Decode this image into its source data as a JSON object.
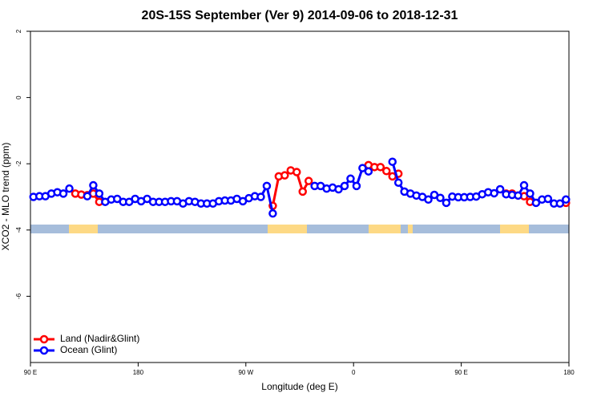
{
  "chart_data": {
    "type": "line",
    "title": "20S-15S September (Ver 9)   2014-09-06 to 2018-12-31",
    "xlabel": "Longitude (deg E)",
    "ylabel": "XCO2 - MLO trend (ppm)",
    "x": [
      92.5,
      97.5,
      102.5,
      107.5,
      112.5,
      117.5,
      122.5,
      127.5,
      132.5,
      137.5,
      142.5,
      147.5,
      152.5,
      157.5,
      162.5,
      167.5,
      172.5,
      177.5,
      182.5,
      187.5,
      192.5,
      197.5,
      202.5,
      207.5,
      212.5,
      217.5,
      222.5,
      227.5,
      232.5,
      237.5,
      242.5,
      247.5,
      252.5,
      257.5,
      262.5,
      267.5,
      272.5,
      277.5,
      282.5,
      287.5,
      292.5,
      297.5,
      302.5,
      307.5,
      312.5,
      317.5,
      322.5,
      327.5,
      332.5,
      337.5,
      342.5,
      347.5,
      352.5,
      357.5,
      362.5,
      367.5,
      372.5,
      377.5,
      382.5,
      387.5,
      392.5,
      397.5,
      402.5,
      407.5,
      412.5,
      417.5,
      422.5,
      427.5,
      432.5,
      437.5,
      442.5,
      447.5,
      452.5,
      457.5,
      462.5,
      467.5,
      472.5,
      477.5,
      482.5,
      487.5,
      492.5,
      497.5,
      502.5,
      507.5,
      512.5,
      517.5,
      522.5,
      527.5,
      532.5,
      537.5
    ],
    "series": [
      {
        "name": "Land (Nadir&Glint)",
        "color": "#ff0000",
        "values": [
          null,
          null,
          null,
          null,
          null,
          null,
          null,
          -2.9,
          -2.93,
          -2.95,
          -2.9,
          -3.15,
          null,
          null,
          null,
          null,
          null,
          null,
          null,
          null,
          null,
          null,
          null,
          null,
          null,
          null,
          null,
          null,
          null,
          null,
          null,
          null,
          null,
          null,
          null,
          null,
          null,
          null,
          null,
          null,
          -3.27,
          -2.38,
          -2.35,
          -2.2,
          -2.25,
          -2.84,
          -2.52,
          null,
          null,
          null,
          null,
          null,
          null,
          null,
          null,
          null,
          -2.04,
          -2.1,
          -2.1,
          -2.22,
          -2.38,
          -2.3,
          null,
          null,
          null,
          null,
          null,
          null,
          null,
          null,
          null,
          null,
          null,
          null,
          null,
          null,
          null,
          null,
          null,
          -2.9,
          -2.9,
          -2.96,
          -2.98,
          -3.15,
          null,
          null,
          null,
          null,
          null,
          -3.18
        ]
      },
      {
        "name": "Ocean (Glint)",
        "color": "#0000ff",
        "values": [
          -3.0,
          -2.98,
          -2.98,
          -2.9,
          -2.86,
          -2.9,
          -2.75,
          null,
          null,
          -2.98,
          -2.65,
          -2.9,
          -3.15,
          -3.08,
          -3.06,
          -3.15,
          -3.15,
          -3.06,
          -3.13,
          -3.06,
          -3.15,
          -3.15,
          -3.15,
          -3.13,
          -3.13,
          -3.2,
          -3.13,
          -3.15,
          -3.2,
          -3.2,
          -3.2,
          -3.13,
          -3.11,
          -3.11,
          -3.06,
          -3.13,
          -3.04,
          -2.98,
          -3.0,
          -2.67,
          -3.5,
          null,
          null,
          null,
          null,
          null,
          null,
          -2.67,
          -2.67,
          -2.75,
          -2.72,
          -2.77,
          -2.67,
          -2.45,
          -2.67,
          -2.13,
          -2.23,
          null,
          null,
          null,
          -1.94,
          -2.57,
          -2.84,
          -2.9,
          -2.96,
          -3.0,
          -3.08,
          -2.94,
          -3.03,
          -3.18,
          -2.99,
          -3.01,
          -3.01,
          -3.0,
          -2.99,
          -2.92,
          -2.86,
          -2.89,
          -2.77,
          -2.92,
          -2.94,
          -2.96,
          -2.65,
          -2.9,
          -3.18,
          -3.08,
          -3.06,
          -3.2,
          -3.2,
          -3.08
        ]
      }
    ],
    "xlim": [
      90,
      540
    ],
    "xticks": [
      {
        "value": 90,
        "label": "90 E"
      },
      {
        "value": 180,
        "label": "180"
      },
      {
        "value": 270,
        "label": "90 W"
      },
      {
        "value": 360,
        "label": "0"
      },
      {
        "value": 450,
        "label": "90 E"
      },
      {
        "value": 540,
        "label": "180"
      }
    ],
    "ylim": [
      -8,
      2
    ],
    "yticks": [
      2,
      0,
      -2,
      -4,
      -6
    ],
    "legend": "bottom-left"
  }
}
